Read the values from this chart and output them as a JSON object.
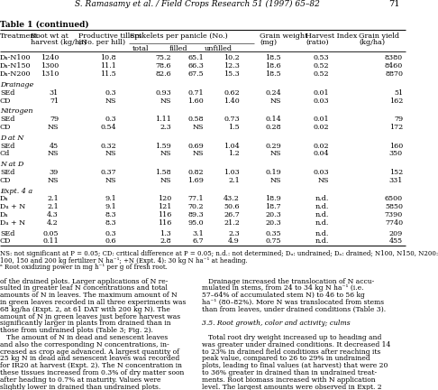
{
  "page_header": "S. Ramasamy et al. / Field Crops Research 51 (1997) 65–82",
  "page_number": "71",
  "table_title": "Table 1 (continued)",
  "rows": [
    [
      "D_u-N100",
      "1240",
      "10.8",
      "75.2",
      "65.1",
      "10.2",
      "18.5",
      "0.53",
      "8380"
    ],
    [
      "D_u-N150",
      "1300",
      "11.1",
      "78.6",
      "66.3",
      "12.3",
      "18.6",
      "0.52",
      "8460"
    ],
    [
      "D_u-N200",
      "1310",
      "11.5",
      "82.6",
      "67.5",
      "15.3",
      "18.5",
      "0.52",
      "8870"
    ],
    [
      "BLANK3"
    ],
    [
      "SECTION:Drainage"
    ],
    [
      "SEd",
      "31",
      "0.3",
      "0.93",
      "0.71",
      "0.62",
      "0.24",
      "0.01",
      "51"
    ],
    [
      "CD",
      "71",
      "NS",
      "NS",
      "1.60",
      "1.40",
      "NS",
      "0.03",
      "162"
    ],
    [
      "BLANK3"
    ],
    [
      "SECTION:Nitrogen"
    ],
    [
      "SEd",
      "79",
      "0.3",
      "1.11",
      "0.58",
      "0.73",
      "0.14",
      "0.01",
      "79"
    ],
    [
      "CD",
      "NS",
      "0.54",
      "2.3",
      "NS",
      "1.5",
      "0.28",
      "0.02",
      "172"
    ],
    [
      "BLANK3"
    ],
    [
      "SECTION:D at N"
    ],
    [
      "SEd",
      "45",
      "0.32",
      "1.59",
      "0.69",
      "1.04",
      "0.29",
      "0.02",
      "160"
    ],
    [
      "Cd",
      "NS",
      "NS",
      "NS",
      "NS",
      "1.2",
      "NS",
      "0.04",
      "350"
    ],
    [
      "BLANK3"
    ],
    [
      "SECTION:N at D"
    ],
    [
      "SEd",
      "39",
      "0.37",
      "1.58",
      "0.82",
      "1.03",
      "0.19",
      "0.03",
      "152"
    ],
    [
      "CD",
      "NS",
      "NS",
      "NS",
      "1.69",
      "2.1",
      "NS",
      "NS",
      "331"
    ],
    [
      "BLANK3"
    ],
    [
      "SECTION:Expt. 4 a"
    ],
    [
      "D_u",
      "2.1",
      "9.1",
      "120",
      "77.1",
      "43.2",
      "18.9",
      "n.d.",
      "6500"
    ],
    [
      "D_u+N",
      "2.1",
      "9.1",
      "121",
      "70.2",
      "50.6",
      "18.7",
      "n.d.",
      "5850"
    ],
    [
      "D_a",
      "4.3",
      "8.3",
      "116",
      "89.3",
      "26.7",
      "20.3",
      "n.d.",
      "7390"
    ],
    [
      "D_a+N",
      "4.2",
      "8.3",
      "116",
      "95.0",
      "21.2",
      "20.3",
      "n.d.",
      "7740"
    ],
    [
      "BLANK3"
    ],
    [
      "SEd",
      "0.05",
      "0.3",
      "1.3",
      "3.1",
      "2.3",
      "0.35",
      "n.d.",
      "209"
    ],
    [
      "CD",
      "0.11",
      "0.6",
      "2.8",
      "6.7",
      "4.9",
      "0.75",
      "n.d.",
      "455"
    ]
  ],
  "footnote_lines": [
    "NS: not significant at P = 0.05; CD: critical difference at P = 0.05; n.d.: not determined; Dᵤ: undrained; Dₐ: drained; N100, N150, N200:",
    "100, 150 and 200 kg fertilizer N ha⁻¹; +N (Expt. 4): 30 kg N ha⁻¹ at heading.",
    "ᵃ Root oxidizing power in mg h⁻¹ per g of fresh root."
  ],
  "body_left": [
    "of the drained plots. Larger applications of N re-",
    "sulted in greater leaf N concentrations and total",
    "amounts of N in leaves. The maximum amount of N",
    "in green leaves recorded in all three experiments was",
    "68 kg/ha (Expt. 2, at 61 DAT with 200 kg N). The",
    "amount of N in green leaves just before harvest was",
    "significantly larger in plants from drained than in",
    "those from undrained plots (Table 3; Fig. 2).",
    "   The amount of N in dead and senescent leaves",
    "and also the corresponding N concentrations, in-",
    "creased as crop age advanced. A largest quantity of",
    "25 kg N in dead and senescent leaves was recorded",
    "for IR20 at harvest (Expt. 2). The N concentration in",
    "these tissues increased from 0.3% of dry matter soon",
    "after heading to 0.7% at maturity. Values were",
    "slightly lower in drained than undrained plots."
  ],
  "body_right": [
    "   Drainage increased the translocation of N accu-",
    "mulated in stems, from 24 to 34 kg N ha⁻¹ (i.e.",
    "57–64% of accumulated stem N) to 46 to 56 kg",
    "ha⁻¹ (80–82%). More N was translocated from stems",
    "than from leaves, under drained conditions (Table 3).",
    "",
    "ITALIC:3.5. Root growth, color and activity; culms",
    "",
    "   Total root dry weight increased up to heading and",
    "was greater under drained conditions. It decreased 14",
    "to 23% in drained field conditions after reaching its",
    "peak value, compared to 26 to 29% in undrained",
    "plots, leading to final values (at harvest) that were 20",
    "to 36% greater in drained than in undrained treat-",
    "ments. Root biomass increased with N application",
    "level. The largest amounts were observed in Expt. 2"
  ]
}
